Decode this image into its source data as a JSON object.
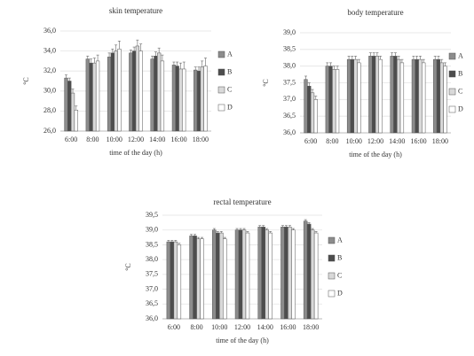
{
  "chart_data": [
    {
      "type": "bar",
      "title": "skin temperature",
      "x_label": "time of the day (h)",
      "y_label": "°C",
      "categories": [
        "6:00",
        "8:00",
        "10:00",
        "12:00",
        "14:00",
        "16:00",
        "18:00"
      ],
      "ylim": [
        26,
        36
      ],
      "yticks": [
        {
          "value": 26,
          "label": "26,0"
        },
        {
          "value": 28,
          "label": "28,0"
        },
        {
          "value": 30,
          "label": "30,0"
        },
        {
          "value": 32,
          "label": "32,0"
        },
        {
          "value": 34,
          "label": "34,0"
        },
        {
          "value": 36,
          "label": "36,0"
        }
      ],
      "grid": true,
      "legend": "right",
      "series": [
        {
          "name": "A",
          "color": "#8c8c8c",
          "values": [
            31.3,
            33.2,
            33.4,
            33.8,
            33.2,
            32.6,
            32.1
          ],
          "errors": [
            0.3,
            0.3,
            0.4,
            0.3,
            0.3,
            0.3,
            0.3
          ]
        },
        {
          "name": "B",
          "color": "#4d4d4d",
          "values": [
            31.0,
            32.8,
            33.8,
            34.0,
            33.5,
            32.5,
            32.0
          ],
          "errors": [
            0.3,
            0.4,
            0.4,
            0.4,
            0.4,
            0.4,
            0.4
          ]
        },
        {
          "name": "C",
          "color": "#d9d9d9",
          "values": [
            29.8,
            32.8,
            34.0,
            34.5,
            33.8,
            32.2,
            32.4
          ],
          "errors": [
            0.4,
            0.5,
            0.6,
            0.6,
            0.5,
            0.6,
            0.6
          ]
        },
        {
          "name": "D",
          "color": "#ffffff",
          "values": [
            28.1,
            33.0,
            34.2,
            34.0,
            33.0,
            32.2,
            32.5
          ],
          "errors": [
            0.4,
            0.6,
            0.8,
            0.7,
            0.6,
            0.7,
            0.8
          ]
        }
      ]
    },
    {
      "type": "bar",
      "title": "body temperature",
      "x_label": "time of the day (h)",
      "y_label": "°C",
      "categories": [
        "6:00",
        "8:00",
        "10:00",
        "12:00",
        "14:00",
        "16:00",
        "18:00"
      ],
      "ylim": [
        36,
        39
      ],
      "yticks": [
        {
          "value": 36,
          "label": "36,0"
        },
        {
          "value": 36.5,
          "label": "36,5"
        },
        {
          "value": 37,
          "label": "37,0"
        },
        {
          "value": 37.5,
          "label": "37,5"
        },
        {
          "value": 38,
          "label": "38,0"
        },
        {
          "value": 38.5,
          "label": "38,5"
        },
        {
          "value": 39,
          "label": "39,0"
        }
      ],
      "grid": true,
      "legend": "right",
      "series": [
        {
          "name": "A",
          "color": "#8c8c8c",
          "values": [
            37.6,
            38.0,
            38.2,
            38.3,
            38.3,
            38.2,
            38.2
          ],
          "errors": [
            0.1,
            0.1,
            0.1,
            0.1,
            0.1,
            0.1,
            0.1
          ]
        },
        {
          "name": "B",
          "color": "#4d4d4d",
          "values": [
            37.4,
            38.0,
            38.2,
            38.3,
            38.3,
            38.2,
            38.2
          ],
          "errors": [
            0.1,
            0.1,
            0.1,
            0.1,
            0.1,
            0.1,
            0.1
          ]
        },
        {
          "name": "C",
          "color": "#d9d9d9",
          "values": [
            37.2,
            37.9,
            38.2,
            38.3,
            38.2,
            38.2,
            38.1
          ],
          "errors": [
            0.1,
            0.1,
            0.1,
            0.1,
            0.1,
            0.1,
            0.1
          ]
        },
        {
          "name": "D",
          "color": "#ffffff",
          "values": [
            37.0,
            37.9,
            38.1,
            38.2,
            38.1,
            38.1,
            38.0
          ],
          "errors": [
            0.1,
            0.1,
            0.1,
            0.1,
            0.1,
            0.1,
            0.1
          ]
        }
      ]
    },
    {
      "type": "bar",
      "title": "rectal temperature",
      "x_label": "time of the day (h)",
      "y_label": "°C",
      "categories": [
        "6:00",
        "8:00",
        "10:00",
        "12:00",
        "14:00",
        "16:00",
        "18:00"
      ],
      "ylim": [
        36,
        39.5
      ],
      "yticks": [
        {
          "value": 36,
          "label": "36,0"
        },
        {
          "value": 36.5,
          "label": "36,5"
        },
        {
          "value": 37,
          "label": "37,0"
        },
        {
          "value": 37.5,
          "label": "37,5"
        },
        {
          "value": 38,
          "label": "38,0"
        },
        {
          "value": 38.5,
          "label": "38,5"
        },
        {
          "value": 39,
          "label": "39,0"
        },
        {
          "value": 39.5,
          "label": "39,5"
        }
      ],
      "grid": true,
      "legend": "right",
      "series": [
        {
          "name": "A",
          "color": "#8c8c8c",
          "values": [
            38.6,
            38.8,
            39.0,
            39.0,
            39.1,
            39.1,
            39.3
          ],
          "errors": [
            0.05,
            0.05,
            0.05,
            0.05,
            0.05,
            0.05,
            0.05
          ]
        },
        {
          "name": "B",
          "color": "#4d4d4d",
          "values": [
            38.6,
            38.8,
            38.9,
            39.0,
            39.1,
            39.1,
            39.2
          ],
          "errors": [
            0.05,
            0.05,
            0.05,
            0.05,
            0.05,
            0.05,
            0.05
          ]
        },
        {
          "name": "C",
          "color": "#d9d9d9",
          "values": [
            38.6,
            38.7,
            38.9,
            39.0,
            39.0,
            39.1,
            39.0
          ],
          "errors": [
            0.05,
            0.05,
            0.05,
            0.05,
            0.05,
            0.05,
            0.05
          ]
        },
        {
          "name": "D",
          "color": "#ffffff",
          "values": [
            38.5,
            38.7,
            38.7,
            38.9,
            38.9,
            39.0,
            38.9
          ],
          "errors": [
            0.05,
            0.05,
            0.05,
            0.05,
            0.05,
            0.05,
            0.05
          ]
        }
      ]
    }
  ]
}
